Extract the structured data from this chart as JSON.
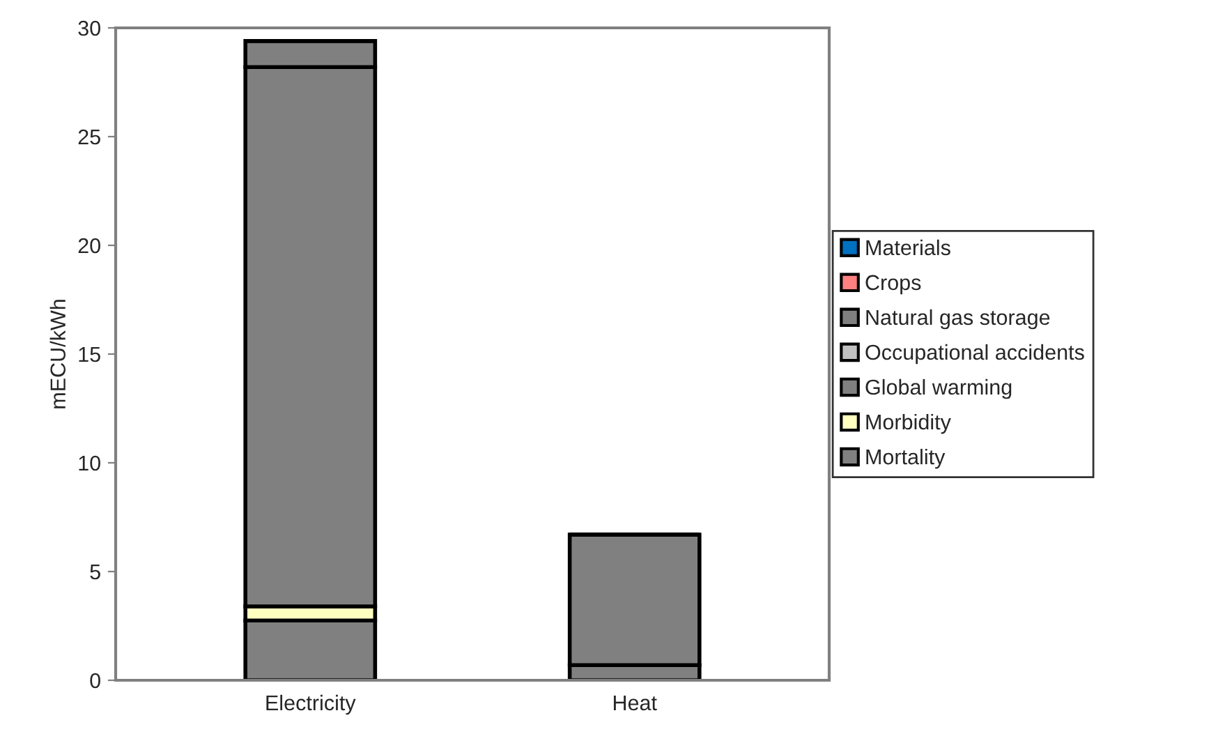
{
  "chart_data": {
    "type": "bar",
    "stacked": true,
    "ylabel": "mECU/kWh",
    "categories": [
      "Electricity",
      "Heat"
    ],
    "series": [
      {
        "name": "Mortality",
        "color": "#808080",
        "values": [
          2.75,
          0.7
        ]
      },
      {
        "name": "Morbidity",
        "color": "#ffffc0",
        "values": [
          0.65,
          null
        ]
      },
      {
        "name": "Global warming",
        "color": "#808080",
        "values": [
          24.8,
          6.0
        ]
      },
      {
        "name": "Occupational accidents",
        "color": "#c0c0c0",
        "values": [
          null,
          null
        ]
      },
      {
        "name": "Natural gas storage",
        "color": "#808080",
        "values": [
          1.2,
          null
        ]
      },
      {
        "name": "Crops",
        "color": "#ff8080",
        "values": [
          null,
          null
        ]
      },
      {
        "name": "Materials",
        "color": "#0070c0",
        "values": [
          null,
          null
        ]
      }
    ],
    "ylim": [
      0,
      30
    ],
    "yticks": [
      0,
      5,
      10,
      15,
      20,
      25,
      30
    ],
    "grid": false,
    "legend": "right"
  }
}
